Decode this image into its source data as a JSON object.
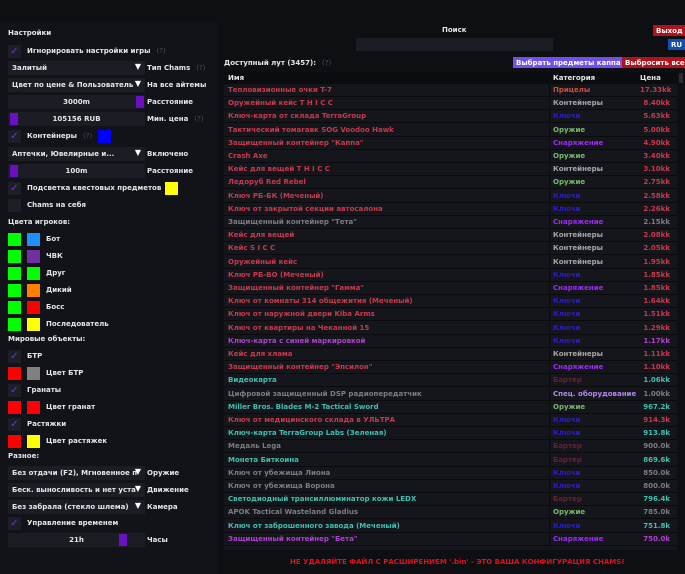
{
  "left": {
    "title": "Настройки",
    "ignore_game_settings": {
      "label": "Игнорировать настройки игры",
      "help": "(?)",
      "checked": true
    },
    "chams_type": {
      "value": "Залитый",
      "label": "Тип Chams",
      "help": "(?)"
    },
    "all_items": {
      "value": "Цвет по цене & Пользователь",
      "label": "На все айтемы"
    },
    "distance": {
      "value": "3000m",
      "label": "Расстояние",
      "level": 1.0
    },
    "min_price": {
      "value": "105156 RUB",
      "label": "Мин. цена",
      "help": "(?)",
      "level": 0.0
    },
    "containers": {
      "label": "Контейнеры",
      "help": "(?)",
      "checked": true,
      "color": "#0000ff"
    },
    "containers_enabled": {
      "value": "Аптечки, Ювелирные и...",
      "label": "Включено"
    },
    "containers_distance": {
      "value": "100m",
      "label": "Расстояние",
      "level": 0.0
    },
    "quest_highlight": {
      "label": "Подсветка квестовых предметов",
      "checked": true,
      "color": "#ffff00"
    },
    "chams_self": {
      "label": "Chams на себя",
      "checked": false
    },
    "player_colors_title": "Цвета игроков:",
    "player_colors": [
      {
        "label": "Бот",
        "c1": "#00ff00",
        "c2": "#1e8fff"
      },
      {
        "label": "ЧВК",
        "c1": "#00ff00",
        "c2": "#7030a0"
      },
      {
        "label": "Друг",
        "c1": "#00ff00",
        "c2": "#00ff00"
      },
      {
        "label": "Дикий",
        "c1": "#00ff00",
        "c2": "#ff8000"
      },
      {
        "label": "Босс",
        "c1": "#00ff00",
        "c2": "#ff0000"
      },
      {
        "label": "Последователь",
        "c1": "#00ff00",
        "c2": "#ffff00"
      }
    ],
    "world_title": "Мировые объекты:",
    "btr": {
      "label": "БТР",
      "checked": true,
      "color_label": "Цвет БТР",
      "c1": "#ff0000",
      "c2": "#808080"
    },
    "grenades": {
      "label": "Гранаты",
      "checked": true,
      "color_label": "Цвет гранат",
      "c1": "#ff0000",
      "c2": "#ff0000"
    },
    "tripwires": {
      "label": "Растяжки",
      "checked": true,
      "color_label": "Цвет растяжек",
      "c1": "#ff0000",
      "c2": "#ffff00"
    },
    "misc_title": "Разное:",
    "weapon": {
      "value": "Без отдачи (F2), Мгновенное п",
      "label": "Оружие"
    },
    "movement": {
      "value": "Беск. выносливость и нет уста",
      "label": "Движение"
    },
    "camera": {
      "value": "Без забрала (стекло шлема)",
      "label": "Камера"
    },
    "time_control": {
      "label": "Управление временем",
      "checked": true
    },
    "hours": {
      "value": "21h",
      "label": "Часы",
      "level": 0.875
    }
  },
  "search": {
    "label": "Поиск",
    "value": ""
  },
  "exit_label": "Выход",
  "lang_label": "RU",
  "loot": {
    "title": "Доступный лут (3457):",
    "help": "(?)",
    "select_kappa": "Выбрать предметы каппа",
    "drop_all": "Выбросить все"
  },
  "columns": {
    "name": "Имя",
    "category": "Категория",
    "price": "Цена"
  },
  "category_colors": {
    "Прицелы": "#c8503e",
    "Контейнеры": "#a6a6a6",
    "Ключи": "#2a1fc0",
    "Оружие": "#78b86c",
    "Снаряжение": "#9a2cf0",
    "Бартер": "#5e2335",
    "Спец. оборудование": "#b08ae8"
  },
  "name_colors": {
    "red": "#c8394d",
    "gray": "#7c7c80",
    "cyan": "#3cc0b2",
    "purple": "#b040d0"
  },
  "rows": [
    {
      "name": "Тепловизионные очки T-7",
      "category": "Прицелы",
      "price": "17.33kk",
      "tier": "red"
    },
    {
      "name": "Оружейный кейс T H I C C",
      "category": "Контейнеры",
      "price": "8.40kk",
      "tier": "red"
    },
    {
      "name": "Ключ-карта от склада TerraGroup",
      "category": "Ключи",
      "price": "5.63kk",
      "tier": "red"
    },
    {
      "name": "Тактический томагавк SOG Voodoo Hawk",
      "category": "Оружие",
      "price": "5.00kk",
      "tier": "red"
    },
    {
      "name": "Защищенный контейнер \"Каппа\"",
      "category": "Снаряжение",
      "price": "4.90kk",
      "tier": "red"
    },
    {
      "name": "Crash Axe",
      "category": "Оружие",
      "price": "3.40kk",
      "tier": "red"
    },
    {
      "name": "Кейс для вещей T H I C C",
      "category": "Контейнеры",
      "price": "3.10kk",
      "tier": "red"
    },
    {
      "name": "Ледоруб Red Rebel",
      "category": "Оружие",
      "price": "2.75kk",
      "tier": "red"
    },
    {
      "name": "Ключ РБ-БК (Меченый)",
      "category": "Ключи",
      "price": "2.58kk",
      "tier": "red"
    },
    {
      "name": "Ключ от закрытой секции автосалона",
      "category": "Ключи",
      "price": "2.26kk",
      "tier": "red"
    },
    {
      "name": "Защищенный контейнер \"Тета\"",
      "category": "Снаряжение",
      "price": "2.15kk",
      "tier": "gray"
    },
    {
      "name": "Кейс для вещей",
      "category": "Контейнеры",
      "price": "2.08kk",
      "tier": "red"
    },
    {
      "name": "Кейс S I C C",
      "category": "Контейнеры",
      "price": "2.05kk",
      "tier": "red"
    },
    {
      "name": "Оружейный кейс",
      "category": "Контейнеры",
      "price": "1.95kk",
      "tier": "red"
    },
    {
      "name": "Ключ РБ-ВО (Меченый)",
      "category": "Ключи",
      "price": "1.85kk",
      "tier": "red"
    },
    {
      "name": "Защищенный контейнер \"Гамма\"",
      "category": "Снаряжение",
      "price": "1.85kk",
      "tier": "red"
    },
    {
      "name": "Ключ от комнаты 314 общежития (Меченый)",
      "category": "Ключи",
      "price": "1.64kk",
      "tier": "red"
    },
    {
      "name": "Ключ от наружной двери Kiba Arms",
      "category": "Ключи",
      "price": "1.51kk",
      "tier": "red"
    },
    {
      "name": "Ключ от квартиры на Чеканной 15",
      "category": "Ключи",
      "price": "1.29kk",
      "tier": "red"
    },
    {
      "name": "Ключ-карта с синей маркировкой",
      "category": "Ключи",
      "price": "1.17kk",
      "tier": "purple"
    },
    {
      "name": "Кейс для хлама",
      "category": "Контейнеры",
      "price": "1.11kk",
      "tier": "red"
    },
    {
      "name": "Защищенный контейнер \"Эпсилон\"",
      "category": "Снаряжение",
      "price": "1.10kk",
      "tier": "red"
    },
    {
      "name": "Видеокарта",
      "category": "Бартер",
      "price": "1.06kk",
      "tier": "cyan"
    },
    {
      "name": "Цифровой защищенный DSP радиопередатчик",
      "category": "Спец. оборудование",
      "price": "1.00kk",
      "tier": "gray"
    },
    {
      "name": "Miller Bros. Blades M-2 Tactical Sword",
      "category": "Оружие",
      "price": "967.2k",
      "tier": "cyan"
    },
    {
      "name": "Ключ от медицинского склада в УЛЬТРА",
      "category": "Ключи",
      "price": "914.3k",
      "tier": "red"
    },
    {
      "name": "Ключ-карта TerraGroup Labs (Зеленая)",
      "category": "Ключи",
      "price": "913.8k",
      "tier": "cyan"
    },
    {
      "name": "Медаль Lega",
      "category": "Бартер",
      "price": "900.0k",
      "tier": "gray"
    },
    {
      "name": "Монета Биткоина",
      "category": "Бартер",
      "price": "869.6k",
      "tier": "cyan"
    },
    {
      "name": "Ключ от убежища Лиона",
      "category": "Ключи",
      "price": "850.0k",
      "tier": "gray"
    },
    {
      "name": "Ключ от убежища Ворона",
      "category": "Ключи",
      "price": "800.0k",
      "tier": "gray"
    },
    {
      "name": "Светодиодный трансиллюминатор кожи LEDX",
      "category": "Бартер",
      "price": "796.4k",
      "tier": "cyan"
    },
    {
      "name": "APOK Tactical Wasteland Gladius",
      "category": "Оружие",
      "price": "785.0k",
      "tier": "gray"
    },
    {
      "name": "Ключ от заброшенного завода (Меченый)",
      "category": "Ключи",
      "price": "751.8k",
      "tier": "cyan"
    },
    {
      "name": "Защищенный контейнер \"Бета\"",
      "category": "Снаряжение",
      "price": "750.0k",
      "tier": "purple"
    }
  ],
  "footer_warning": "НЕ УДАЛЯЙТЕ ФАЙЛ С РАСШИРЕНИЕМ '.bin' - ЭТО ВАША КОНФИГУРАЦИЯ CHAMS!"
}
